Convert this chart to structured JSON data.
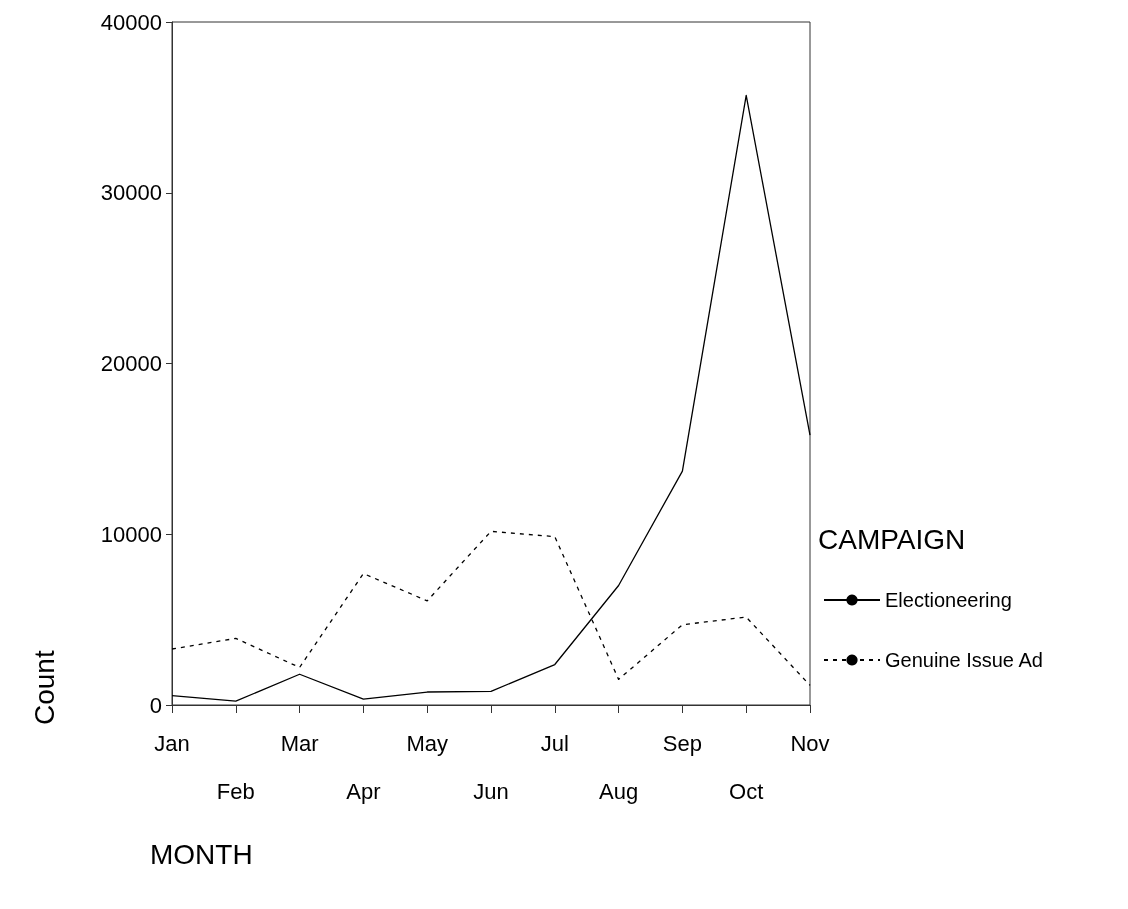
{
  "chart_data": {
    "type": "line",
    "xlabel": "MONTH",
    "ylabel": "Count",
    "legend_title": "CAMPAIGN",
    "categories": [
      "Jan",
      "Feb",
      "Mar",
      "Apr",
      "May",
      "Jun",
      "Jul",
      "Aug",
      "Sep",
      "Oct",
      "Nov"
    ],
    "series": [
      {
        "name": "Electioneering",
        "color": "#000000",
        "line_style": "solid",
        "values": [
          550,
          230,
          1800,
          340,
          760,
          800,
          2370,
          7000,
          13700,
          35700,
          15800
        ]
      },
      {
        "name": "Genuine Issue Ad",
        "color": "#000000",
        "line_style": "dashed",
        "values": [
          3280,
          3900,
          2200,
          7700,
          6100,
          10170,
          9860,
          1500,
          4700,
          5150,
          1150
        ]
      }
    ],
    "ylim": [
      0,
      40000
    ],
    "yticks": [
      0,
      10000,
      20000,
      30000,
      40000
    ],
    "grid": false,
    "legend": "right",
    "marker": "none"
  }
}
